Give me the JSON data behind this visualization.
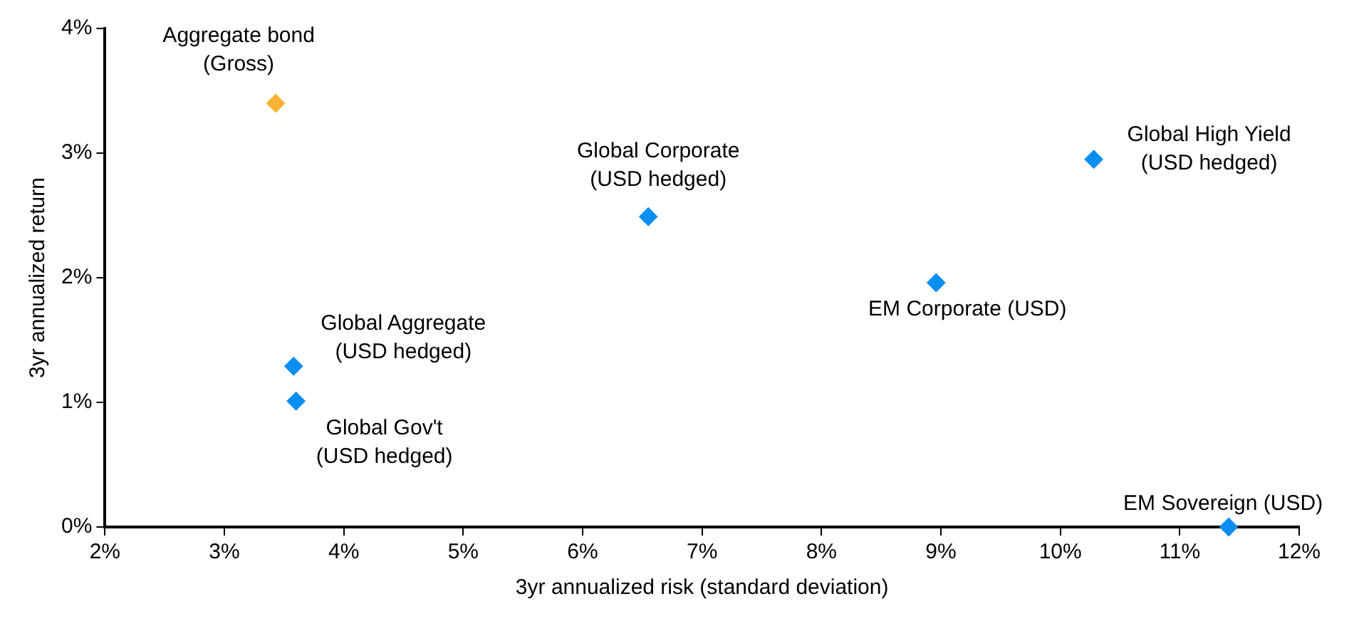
{
  "chart_data": {
    "type": "scatter",
    "xlabel": "3yr annualized risk (standard deviation)",
    "ylabel": "3yr annualized return",
    "x": [
      3.43,
      6.55,
      3.58,
      3.6,
      10.28,
      8.96,
      11.41
    ],
    "values": [
      3.4,
      2.49,
      1.29,
      1.01,
      2.95,
      1.96,
      0.0
    ],
    "colors": [
      "#f9b233",
      "#0a8ff0",
      "#0a8ff0",
      "#0a8ff0",
      "#0a8ff0",
      "#0a8ff0",
      "#0a8ff0"
    ],
    "marker": "diamond",
    "grid": false,
    "legend": false,
    "xlim": [
      2,
      12
    ],
    "ylim": [
      0,
      4
    ],
    "xticks": [
      {
        "value": 2,
        "label": "2%"
      },
      {
        "value": 3,
        "label": "3%"
      },
      {
        "value": 4,
        "label": "4%"
      },
      {
        "value": 5,
        "label": "5%"
      },
      {
        "value": 6,
        "label": "6%"
      },
      {
        "value": 7,
        "label": "7%"
      },
      {
        "value": 8,
        "label": "8%"
      },
      {
        "value": 9,
        "label": "9%"
      },
      {
        "value": 10,
        "label": "10%"
      },
      {
        "value": 11,
        "label": "11%"
      },
      {
        "value": 12,
        "label": "12%"
      }
    ],
    "yticks": [
      {
        "value": 0,
        "label": "0%"
      },
      {
        "value": 1,
        "label": "1%"
      },
      {
        "value": 2,
        "label": "2%"
      },
      {
        "value": 3,
        "label": "3%"
      },
      {
        "value": 4,
        "label": "4%"
      }
    ],
    "annotations": [
      {
        "text": "Aggregate bond\n(Gross)",
        "x": 3.43,
        "y": 3.4
      },
      {
        "text": "Global Corporate\n(USD hedged)",
        "x": 6.55,
        "y": 2.49
      },
      {
        "text": "Global Aggregate\n(USD hedged)",
        "x": 3.58,
        "y": 1.29
      },
      {
        "text": "Global Gov't\n(USD hedged)",
        "x": 3.6,
        "y": 1.01
      },
      {
        "text": "Global High Yield\n(USD hedged)",
        "x": 10.28,
        "y": 2.95
      },
      {
        "text": "EM Corporate (USD)",
        "x": 8.96,
        "y": 1.96
      },
      {
        "text": "EM Sovereign (USD)",
        "x": 11.41,
        "y": 0.0
      }
    ]
  }
}
